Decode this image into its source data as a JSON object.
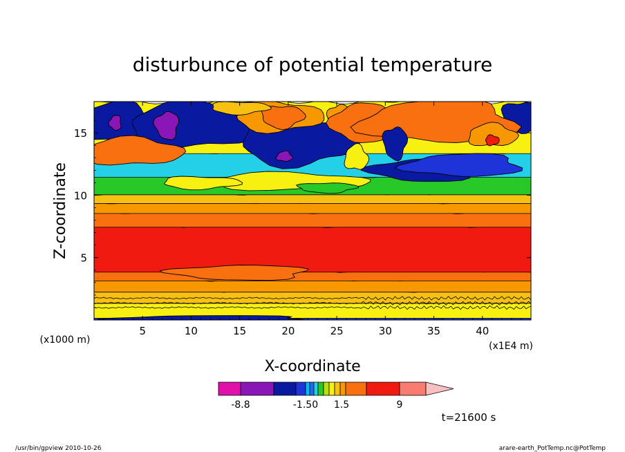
{
  "chart_data": {
    "type": "heatmap",
    "title": "disturbunce of potential temperature",
    "xlabel": "X-coordinate",
    "ylabel": "Z-coordinate",
    "x_unit": "(x1000 m)",
    "x_unit2": "(x1E4 m)",
    "xlim": [
      0,
      450
    ],
    "ylim": [
      0,
      17.5
    ],
    "x_tick_values": [
      50,
      100,
      150,
      200,
      250,
      300,
      350,
      400
    ],
    "x_tick_labels": [
      "5",
      "10",
      "15",
      "20",
      "25",
      "30",
      "35",
      "40"
    ],
    "y_tick_values": [
      5,
      10,
      15
    ],
    "y_tick_labels": [
      "5",
      "10",
      "15"
    ],
    "colorbar": {
      "colors": [
        "#e010a8",
        "#8a16b8",
        "#0a1aa0",
        "#1e34d8",
        "#00b8ff",
        "#1e6cf0",
        "#24d0e8",
        "#28c828",
        "#b8e010",
        "#f8f010",
        "#f8c010",
        "#f89800",
        "#f87010",
        "#f01a10",
        "#f87c70",
        "#f8c0c0"
      ],
      "tick_labels": [
        "-8.8",
        "-1.50",
        "1.5",
        "9"
      ]
    },
    "time_label": "t=21600 s",
    "footer_left": "/usr/bin/gpview  2010-10-26",
    "footer_right": "arare-earth_PotTemp.nc@PotTemp",
    "bands": [
      {
        "z0": 0.0,
        "z1": 0.3,
        "color": "#1e34d8"
      },
      {
        "z0": 0.3,
        "z1": 1.5,
        "color": "#f8f010"
      },
      {
        "z0": 1.5,
        "z1": 2.4,
        "color": "#f8c010"
      },
      {
        "z0": 2.4,
        "z1": 3.3,
        "color": "#f89800"
      },
      {
        "z0": 3.3,
        "z1": 4.0,
        "color": "#f87010"
      },
      {
        "z0": 4.0,
        "z1": 7.6,
        "color": "#f01a10"
      },
      {
        "z0": 7.6,
        "z1": 8.7,
        "color": "#f87010"
      },
      {
        "z0": 8.7,
        "z1": 9.5,
        "color": "#f89800"
      },
      {
        "z0": 9.5,
        "z1": 10.2,
        "color": "#f8c010"
      },
      {
        "z0": 10.2,
        "z1": 11.6,
        "color": "#28c828"
      },
      {
        "z0": 11.6,
        "z1": 13.5,
        "color": "#24d0e8"
      },
      {
        "z0": 13.5,
        "z1": 17.5,
        "color": "#f8f010"
      }
    ],
    "blobs": [
      {
        "cx": 25,
        "cz": 15.8,
        "rx": 40,
        "rz": 1.6,
        "color": "#0a1aa0"
      },
      {
        "cx": 105,
        "cz": 15.6,
        "rx": 70,
        "rz": 1.8,
        "color": "#0a1aa0"
      },
      {
        "cx": 210,
        "cz": 14.3,
        "rx": 60,
        "rz": 1.9,
        "color": "#0a1aa0"
      },
      {
        "cx": 440,
        "cz": 16.3,
        "rx": 20,
        "rz": 1.2,
        "color": "#0a1aa0"
      },
      {
        "cx": 75,
        "cz": 15.6,
        "rx": 12,
        "rz": 1.1,
        "color": "#8a16b8"
      },
      {
        "cx": 22,
        "cz": 15.8,
        "rx": 6,
        "rz": 0.6,
        "color": "#8a16b8"
      },
      {
        "cx": 196,
        "cz": 13.1,
        "rx": 8,
        "rz": 0.4,
        "color": "#8a16b8"
      },
      {
        "cx": 40,
        "cz": 13.5,
        "rx": 50,
        "rz": 1.1,
        "color": "#f87010"
      },
      {
        "cx": 190,
        "cz": 16.3,
        "rx": 45,
        "rz": 1.2,
        "color": "#f89800"
      },
      {
        "cx": 194,
        "cz": 16.3,
        "rx": 22,
        "rz": 0.9,
        "color": "#f87010"
      },
      {
        "cx": 253,
        "cz": 16.2,
        "rx": 12,
        "rz": 1.1,
        "color": "#f89800"
      },
      {
        "cx": 275,
        "cz": 15.8,
        "rx": 30,
        "rz": 1.6,
        "color": "#f87010"
      },
      {
        "cx": 355,
        "cz": 15.9,
        "rx": 80,
        "rz": 1.7,
        "color": "#f87010"
      },
      {
        "cx": 410,
        "cz": 14.8,
        "rx": 25,
        "rz": 0.9,
        "color": "#f89800"
      },
      {
        "cx": 410,
        "cz": 14.4,
        "rx": 7,
        "rz": 0.4,
        "color": "#f01a10"
      },
      {
        "cx": 150,
        "cz": 17.0,
        "rx": 30,
        "rz": 0.5,
        "color": "#f8c010"
      },
      {
        "cx": 310,
        "cz": 14.2,
        "rx": 12,
        "rz": 1.3,
        "color": "#0a1aa0"
      },
      {
        "cx": 340,
        "cz": 12.0,
        "rx": 55,
        "rz": 0.9,
        "color": "#0a1aa0"
      },
      {
        "cx": 380,
        "cz": 12.4,
        "rx": 60,
        "rz": 0.9,
        "color": "#1e34d8"
      },
      {
        "cx": 270,
        "cz": 13.0,
        "rx": 12,
        "rz": 1.0,
        "color": "#f8f010"
      },
      {
        "cx": 200,
        "cz": 11.1,
        "rx": 80,
        "rz": 0.7,
        "color": "#f8f010"
      },
      {
        "cx": 110,
        "cz": 11.0,
        "rx": 40,
        "rz": 0.5,
        "color": "#f8f010"
      },
      {
        "cx": 240,
        "cz": 10.6,
        "rx": 30,
        "rz": 0.4,
        "color": "#28c828"
      },
      {
        "cx": 150,
        "cz": 3.8,
        "rx": 70,
        "rz": 0.6,
        "color": "#f87010"
      },
      {
        "cx": 120,
        "cz": 0.1,
        "rx": 100,
        "rz": 0.25,
        "color": "#0a1aa0"
      }
    ]
  }
}
